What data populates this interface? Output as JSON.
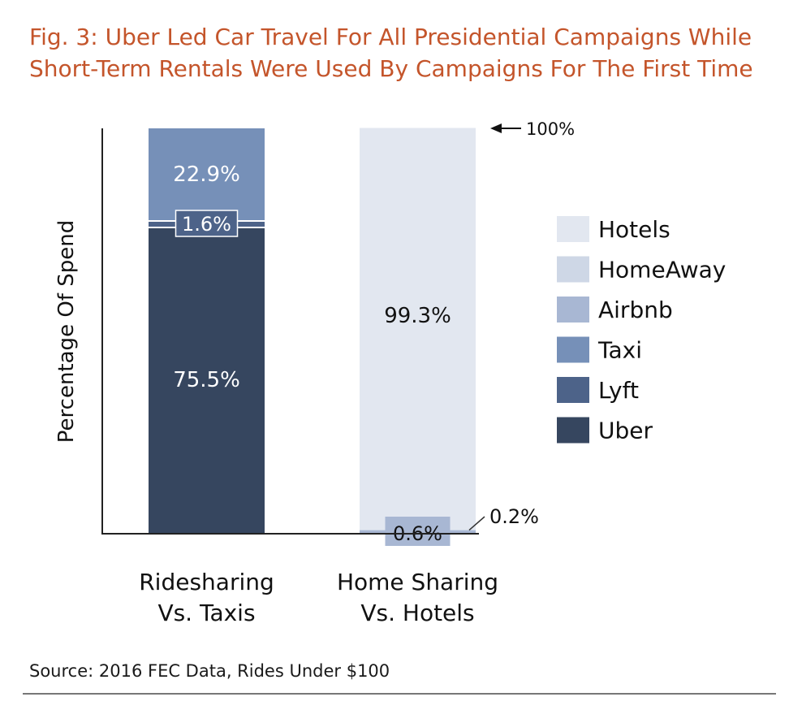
{
  "chart_data": {
    "type": "bar",
    "title": "Fig. 3: Uber Led Car Travel For All Presidential Campaigns While Short-Term Rentals Were Used By Campaigns For The First Time",
    "ylabel": "Percentage Of Spend",
    "xlabel": "",
    "ylim": [
      0,
      100
    ],
    "grid": false,
    "stacked": true,
    "legend_position": "right",
    "categories": [
      {
        "line1": "Ridesharing",
        "line2": "Vs. Taxis"
      },
      {
        "line1": "Home Sharing",
        "line2": "Vs. Hotels"
      }
    ],
    "series": [
      {
        "name": "Uber",
        "color": "#36465f",
        "values": [
          75.5,
          0
        ],
        "labels": [
          "75.5%",
          ""
        ]
      },
      {
        "name": "Lyft",
        "color": "#4d6389",
        "values": [
          1.6,
          0
        ],
        "labels": [
          "1.6%",
          ""
        ]
      },
      {
        "name": "Taxi",
        "color": "#7690b8",
        "values": [
          22.9,
          0
        ],
        "labels": [
          "22.9%",
          ""
        ]
      },
      {
        "name": "Airbnb",
        "color": "#a8b7d3",
        "values": [
          0,
          0.6
        ],
        "labels": [
          "",
          "0.6%"
        ]
      },
      {
        "name": "HomeAway",
        "color": "#ced7e6",
        "values": [
          0,
          0.2
        ],
        "labels": [
          "",
          "0.2%"
        ]
      },
      {
        "name": "Hotels",
        "color": "#e2e7f0",
        "values": [
          0,
          99.3
        ],
        "labels": [
          "",
          "99.3%"
        ]
      }
    ],
    "legend_order": [
      "Hotels",
      "HomeAway",
      "Airbnb",
      "Taxi",
      "Lyft",
      "Uber"
    ],
    "annotations": {
      "top_marker": "100%"
    },
    "source": "Source: 2016 FEC Data, Rides Under $100"
  }
}
